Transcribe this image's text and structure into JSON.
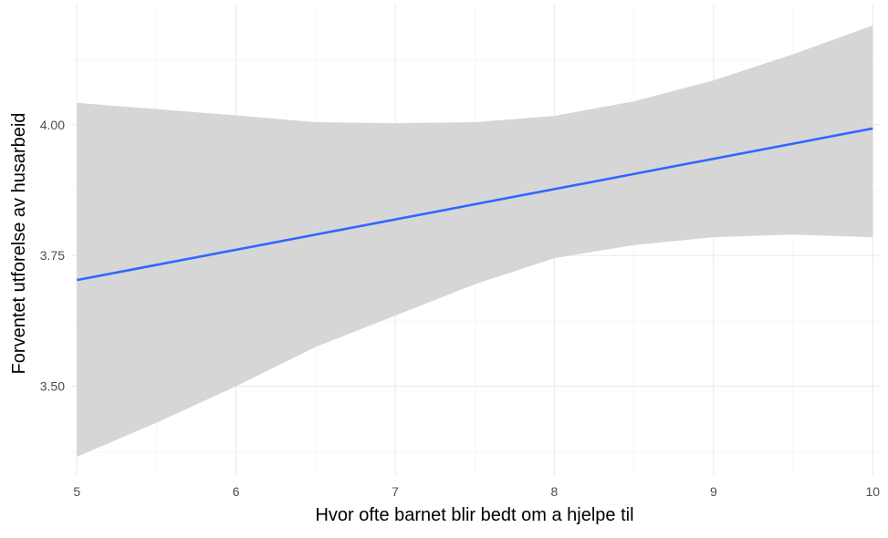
{
  "chart_data": {
    "type": "line",
    "title": "",
    "xlabel": "Hvor ofte barnet blir bedt om a hjelpe til",
    "ylabel": "Forventet utforelse av husarbeid",
    "xlim": [
      4.97,
      10.05
    ],
    "ylim": [
      3.33,
      4.23
    ],
    "x_ticks": [
      5,
      6,
      7,
      8,
      9,
      10
    ],
    "x_tick_labels": [
      "5",
      "6",
      "7",
      "8",
      "9",
      "10"
    ],
    "y_ticks": [
      3.5,
      3.75,
      4.0
    ],
    "y_tick_labels": [
      "3.50",
      "3.75",
      "4.00"
    ],
    "grid": true,
    "legend": "none",
    "series": [
      {
        "x": [
          5,
          10
        ],
        "y": [
          3.703,
          3.993
        ],
        "color": "#3366FF"
      }
    ],
    "confidence_band": {
      "x": [
        5,
        5.5,
        6,
        6.5,
        7,
        7.5,
        8,
        8.5,
        9,
        9.5,
        10
      ],
      "lower": [
        3.365,
        3.43,
        3.5,
        3.575,
        3.635,
        3.695,
        3.745,
        3.77,
        3.785,
        3.79,
        3.785
      ],
      "upper": [
        4.042,
        4.03,
        4.018,
        4.005,
        4.003,
        4.005,
        4.017,
        4.045,
        4.085,
        4.135,
        4.19
      ],
      "fill": "#d6d6d6"
    }
  }
}
